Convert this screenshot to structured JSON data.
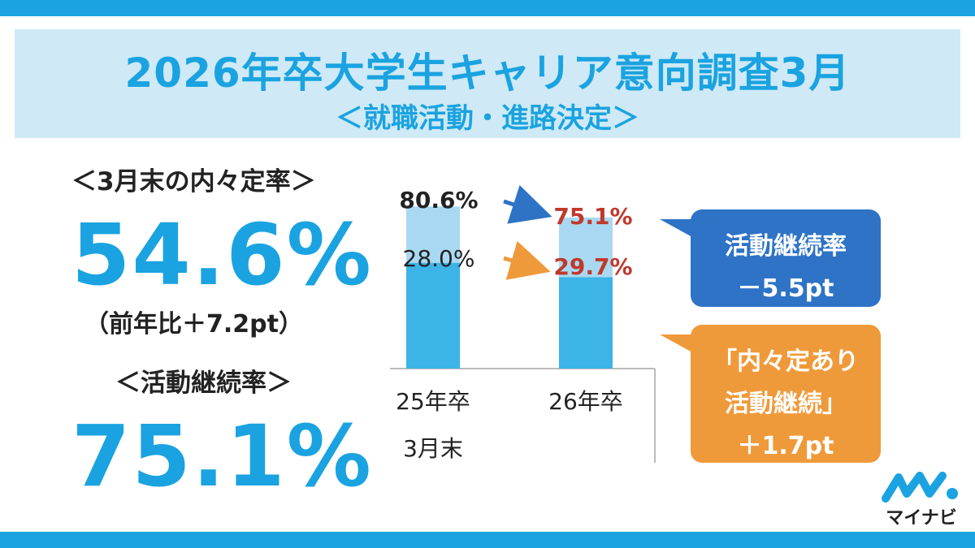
{
  "header": {
    "title": "2026年卒大学生キャリア意向調査3月",
    "subtitle": "＜就職活動・進路決定＞"
  },
  "kpis": {
    "naitei_label": "＜3月末の内々定率＞",
    "naitei_value": "54.6%",
    "naitei_note": "（前年比＋7.2pt）",
    "keizoku_label": "＜活動継続率＞",
    "keizoku_value": "75.1%"
  },
  "chart_data": {
    "type": "bar",
    "categories": [
      "25年卒",
      "26年卒"
    ],
    "category_group_label": "3月末",
    "series": [
      {
        "values": [
          52.6,
          45.4
        ]
      },
      {
        "values": [
          28.0,
          29.7
        ]
      }
    ],
    "totals": [
      80.6,
      75.1
    ],
    "data_labels": {
      "totals": [
        "80.6%",
        "75.1%"
      ],
      "top_segment": [
        "28.0%",
        "29.7%"
      ]
    },
    "ylim": [
      0,
      100
    ],
    "colors": {
      "bottom": "#3cb4e8",
      "top": "#a9d9f2",
      "label_2025": "#222222",
      "label_2026": "#c0392b",
      "arrow_total": "#2e73c6",
      "arrow_segment": "#ef9a3a",
      "axis": "#bbbbbb"
    }
  },
  "callouts": {
    "blue": {
      "line1": "活動継続率",
      "line2": "－5.5pt",
      "color": "#2e73c6"
    },
    "orange": {
      "line1": "「内々定あり",
      "line2": "活動継続」",
      "line3": "＋1.7pt",
      "color": "#ef9a3a"
    }
  },
  "logo": {
    "text": "マイナビ",
    "icon": "mynavi-logo-icon",
    "color": "#1aa3e0"
  },
  "theme": {
    "accent": "#1aa3e0",
    "title_bg": "#cfe9f6"
  }
}
